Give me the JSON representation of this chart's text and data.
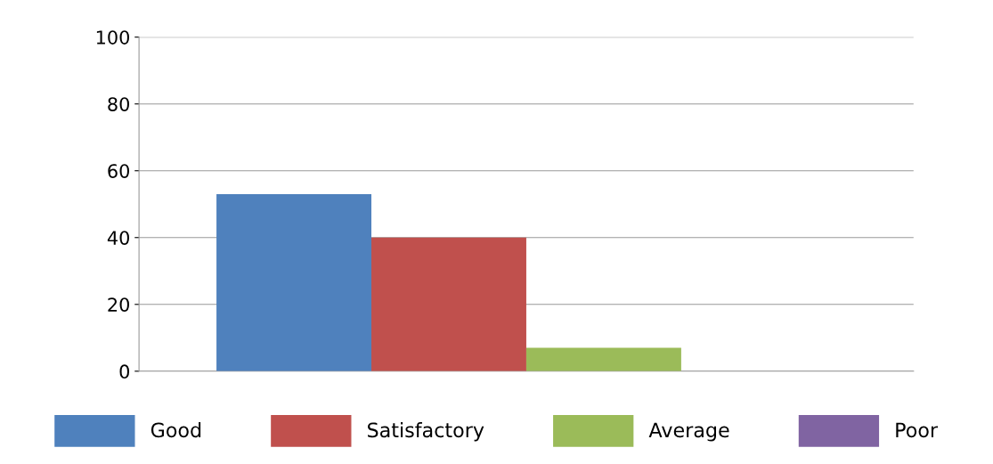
{
  "chart_data": {
    "type": "bar",
    "categories": [
      null
    ],
    "series": [
      {
        "name": "Good",
        "color": "#4f81bd",
        "values": [
          53
        ]
      },
      {
        "name": "Satisfactory",
        "color": "#c0504d",
        "values": [
          40
        ]
      },
      {
        "name": "Average",
        "color": "#9bbb59",
        "values": [
          7
        ]
      },
      {
        "name": "Poor",
        "color": "#8064a2",
        "values": [
          0
        ]
      }
    ],
    "ylim": [
      0,
      100
    ],
    "yticks": [
      0,
      20,
      40,
      60,
      80,
      100
    ],
    "grid": "y",
    "legend": "bottom"
  }
}
